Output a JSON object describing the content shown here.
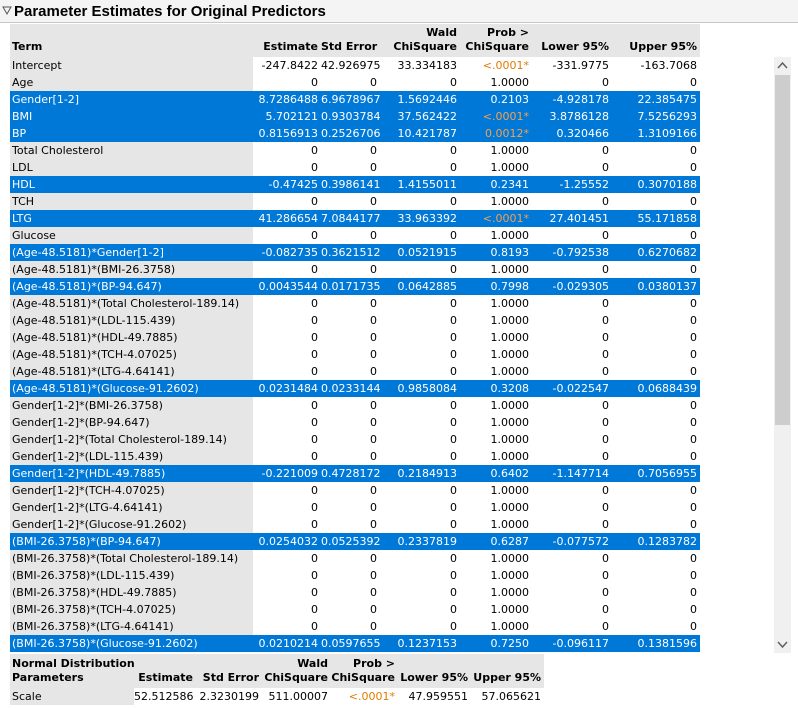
{
  "title": "Parameter Estimates for Original Predictors",
  "estimates_table": {
    "columns": [
      [
        "Term"
      ],
      [
        "Estimate"
      ],
      [
        "Std Error"
      ],
      [
        "Wald",
        "ChiSquare"
      ],
      [
        "Prob >",
        "ChiSquare"
      ],
      [
        "Lower 95%"
      ],
      [
        "Upper 95%"
      ]
    ],
    "rows": [
      {
        "cells": [
          "Intercept",
          "-247.8422",
          "42.926975",
          "33.334183",
          "<.0001*",
          "-331.9775",
          "-163.7068"
        ],
        "selected": false
      },
      {
        "cells": [
          "Age",
          "0",
          "0",
          "0",
          "1.0000",
          "0",
          "0"
        ],
        "selected": false
      },
      {
        "cells": [
          "Gender[1-2]",
          "8.7286488",
          "6.9678967",
          "1.5692446",
          "0.2103",
          "-4.928178",
          "22.385475"
        ],
        "selected": true
      },
      {
        "cells": [
          "BMI",
          "5.702121",
          "0.9303784",
          "37.562422",
          "<.0001*",
          "3.8786128",
          "7.5256293"
        ],
        "selected": true
      },
      {
        "cells": [
          "BP",
          "0.8156913",
          "0.2526706",
          "10.421787",
          "0.0012*",
          "0.320466",
          "1.3109166"
        ],
        "selected": true
      },
      {
        "cells": [
          "Total Cholesterol",
          "0",
          "0",
          "0",
          "1.0000",
          "0",
          "0"
        ],
        "selected": false
      },
      {
        "cells": [
          "LDL",
          "0",
          "0",
          "0",
          "1.0000",
          "0",
          "0"
        ],
        "selected": false
      },
      {
        "cells": [
          "HDL",
          "-0.47425",
          "0.3986141",
          "1.4155011",
          "0.2341",
          "-1.25552",
          "0.3070188"
        ],
        "selected": true
      },
      {
        "cells": [
          "TCH",
          "0",
          "0",
          "0",
          "1.0000",
          "0",
          "0"
        ],
        "selected": false
      },
      {
        "cells": [
          "LTG",
          "41.286654",
          "7.0844177",
          "33.963392",
          "<.0001*",
          "27.401451",
          "55.171858"
        ],
        "selected": true
      },
      {
        "cells": [
          "Glucose",
          "0",
          "0",
          "0",
          "1.0000",
          "0",
          "0"
        ],
        "selected": false
      },
      {
        "cells": [
          "(Age-48.5181)*Gender[1-2]",
          "-0.082735",
          "0.3621512",
          "0.0521915",
          "0.8193",
          "-0.792538",
          "0.6270682"
        ],
        "selected": true
      },
      {
        "cells": [
          "(Age-48.5181)*(BMI-26.3758)",
          "0",
          "0",
          "0",
          "1.0000",
          "0",
          "0"
        ],
        "selected": false
      },
      {
        "cells": [
          "(Age-48.5181)*(BP-94.647)",
          "0.0043544",
          "0.0171735",
          "0.0642885",
          "0.7998",
          "-0.029305",
          "0.0380137"
        ],
        "selected": true
      },
      {
        "cells": [
          "(Age-48.5181)*(Total Cholesterol-189.14)",
          "0",
          "0",
          "0",
          "1.0000",
          "0",
          "0"
        ],
        "selected": false
      },
      {
        "cells": [
          "(Age-48.5181)*(LDL-115.439)",
          "0",
          "0",
          "0",
          "1.0000",
          "0",
          "0"
        ],
        "selected": false
      },
      {
        "cells": [
          "(Age-48.5181)*(HDL-49.7885)",
          "0",
          "0",
          "0",
          "1.0000",
          "0",
          "0"
        ],
        "selected": false
      },
      {
        "cells": [
          "(Age-48.5181)*(TCH-4.07025)",
          "0",
          "0",
          "0",
          "1.0000",
          "0",
          "0"
        ],
        "selected": false
      },
      {
        "cells": [
          "(Age-48.5181)*(LTG-4.64141)",
          "0",
          "0",
          "0",
          "1.0000",
          "0",
          "0"
        ],
        "selected": false
      },
      {
        "cells": [
          "(Age-48.5181)*(Glucose-91.2602)",
          "0.0231484",
          "0.0233144",
          "0.9858084",
          "0.3208",
          "-0.022547",
          "0.0688439"
        ],
        "selected": true
      },
      {
        "cells": [
          "Gender[1-2]*(BMI-26.3758)",
          "0",
          "0",
          "0",
          "1.0000",
          "0",
          "0"
        ],
        "selected": false
      },
      {
        "cells": [
          "Gender[1-2]*(BP-94.647)",
          "0",
          "0",
          "0",
          "1.0000",
          "0",
          "0"
        ],
        "selected": false
      },
      {
        "cells": [
          "Gender[1-2]*(Total Cholesterol-189.14)",
          "0",
          "0",
          "0",
          "1.0000",
          "0",
          "0"
        ],
        "selected": false
      },
      {
        "cells": [
          "Gender[1-2]*(LDL-115.439)",
          "0",
          "0",
          "0",
          "1.0000",
          "0",
          "0"
        ],
        "selected": false
      },
      {
        "cells": [
          "Gender[1-2]*(HDL-49.7885)",
          "-0.221009",
          "0.4728172",
          "0.2184913",
          "0.6402",
          "-1.147714",
          "0.7056955"
        ],
        "selected": true
      },
      {
        "cells": [
          "Gender[1-2]*(TCH-4.07025)",
          "0",
          "0",
          "0",
          "1.0000",
          "0",
          "0"
        ],
        "selected": false
      },
      {
        "cells": [
          "Gender[1-2]*(LTG-4.64141)",
          "0",
          "0",
          "0",
          "1.0000",
          "0",
          "0"
        ],
        "selected": false
      },
      {
        "cells": [
          "Gender[1-2]*(Glucose-91.2602)",
          "0",
          "0",
          "0",
          "1.0000",
          "0",
          "0"
        ],
        "selected": false
      },
      {
        "cells": [
          "(BMI-26.3758)*(BP-94.647)",
          "0.0254032",
          "0.0525392",
          "0.2337819",
          "0.6287",
          "-0.077572",
          "0.1283782"
        ],
        "selected": true
      },
      {
        "cells": [
          "(BMI-26.3758)*(Total Cholesterol-189.14)",
          "0",
          "0",
          "0",
          "1.0000",
          "0",
          "0"
        ],
        "selected": false
      },
      {
        "cells": [
          "(BMI-26.3758)*(LDL-115.439)",
          "0",
          "0",
          "0",
          "1.0000",
          "0",
          "0"
        ],
        "selected": false
      },
      {
        "cells": [
          "(BMI-26.3758)*(HDL-49.7885)",
          "0",
          "0",
          "0",
          "1.0000",
          "0",
          "0"
        ],
        "selected": false
      },
      {
        "cells": [
          "(BMI-26.3758)*(TCH-4.07025)",
          "0",
          "0",
          "0",
          "1.0000",
          "0",
          "0"
        ],
        "selected": false
      },
      {
        "cells": [
          "(BMI-26.3758)*(LTG-4.64141)",
          "0",
          "0",
          "0",
          "1.0000",
          "0",
          "0"
        ],
        "selected": false
      },
      {
        "cells": [
          "(BMI-26.3758)*(Glucose-91.2602)",
          "0.0210214",
          "0.0597655",
          "0.1237153",
          "0.7250",
          "-0.096117",
          "0.1381596"
        ],
        "selected": true
      }
    ]
  },
  "distribution_table": {
    "columns": [
      [
        "Normal Distribution",
        "Parameters"
      ],
      [
        "Estimate"
      ],
      [
        "Std Error"
      ],
      [
        "Wald",
        "ChiSquare"
      ],
      [
        "Prob >",
        "ChiSquare"
      ],
      [
        "Lower 95%"
      ],
      [
        "Upper 95%"
      ]
    ],
    "rows": [
      {
        "cells": [
          "Scale",
          "52.512586",
          "2.3230199",
          "511.00007",
          "<.0001*",
          "47.959551",
          "57.065621"
        ],
        "selected": false
      }
    ]
  }
}
